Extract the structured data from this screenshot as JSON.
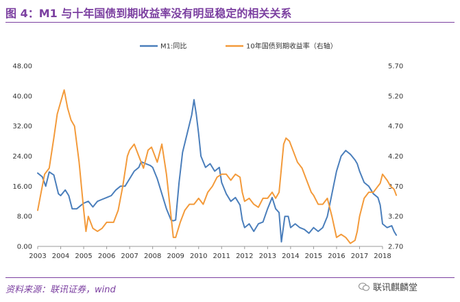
{
  "header": {
    "title": "图 4：M1 与十年国债到期收益率没有明显稳定的相关关系"
  },
  "footer": {
    "source": "资料来源：联讯证券，wind",
    "watermark": "联讯麒麟堂"
  },
  "colors": {
    "accent": "#7b3fa0",
    "m1": "#4a7ebb",
    "bond": "#f39a3a"
  },
  "chart_data": {
    "type": "line",
    "legend_position": "top",
    "grid": false,
    "x": {
      "range": [
        2003.0,
        2018.0
      ],
      "tick_labels": [
        "2003",
        "2004",
        "2005",
        "2006",
        "2007",
        "2008",
        "2009",
        "2010",
        "2011",
        "2012",
        "2013",
        "2014",
        "2015",
        "2016",
        "2017",
        "2018"
      ]
    },
    "y_left": {
      "range": [
        0,
        48
      ],
      "tick_labels": [
        "0.00",
        "8.00",
        "16.00",
        "24.00",
        "32.00",
        "40.00",
        "48.00"
      ]
    },
    "y_right": {
      "range": [
        2.7,
        5.7
      ],
      "tick_labels": [
        "2.70",
        "3.20",
        "3.70",
        "4.20",
        "4.70",
        "5.20",
        "5.70"
      ]
    },
    "series": [
      {
        "name": "M1:同比",
        "axis": "left",
        "points": [
          [
            2003.0,
            19.5
          ],
          [
            2003.2,
            18.5
          ],
          [
            2003.35,
            16
          ],
          [
            2003.5,
            19.8
          ],
          [
            2003.7,
            19
          ],
          [
            2003.9,
            14
          ],
          [
            2004.0,
            13.5
          ],
          [
            2004.2,
            15
          ],
          [
            2004.35,
            13.5
          ],
          [
            2004.5,
            10
          ],
          [
            2004.7,
            10
          ],
          [
            2004.9,
            11
          ],
          [
            2005.0,
            11.5
          ],
          [
            2005.2,
            12
          ],
          [
            2005.4,
            10.5
          ],
          [
            2005.6,
            12
          ],
          [
            2005.8,
            12.5
          ],
          [
            2006.0,
            13
          ],
          [
            2006.2,
            13.5
          ],
          [
            2006.4,
            15
          ],
          [
            2006.6,
            16
          ],
          [
            2006.8,
            16
          ],
          [
            2007.0,
            18
          ],
          [
            2007.2,
            20
          ],
          [
            2007.4,
            21
          ],
          [
            2007.5,
            22.5
          ],
          [
            2007.7,
            22
          ],
          [
            2007.9,
            21.5
          ],
          [
            2008.0,
            21
          ],
          [
            2008.2,
            18
          ],
          [
            2008.4,
            14
          ],
          [
            2008.6,
            10
          ],
          [
            2008.8,
            7
          ],
          [
            2008.9,
            6.8
          ],
          [
            2009.0,
            7
          ],
          [
            2009.15,
            17
          ],
          [
            2009.3,
            25
          ],
          [
            2009.5,
            30
          ],
          [
            2009.7,
            35
          ],
          [
            2009.8,
            39
          ],
          [
            2009.9,
            35
          ],
          [
            2010.0,
            30
          ],
          [
            2010.1,
            24
          ],
          [
            2010.3,
            21
          ],
          [
            2010.5,
            22
          ],
          [
            2010.7,
            20
          ],
          [
            2010.9,
            21
          ],
          [
            2011.0,
            17
          ],
          [
            2011.2,
            14
          ],
          [
            2011.4,
            12
          ],
          [
            2011.6,
            13
          ],
          [
            2011.8,
            11
          ],
          [
            2011.9,
            7
          ],
          [
            2012.0,
            5
          ],
          [
            2012.2,
            6
          ],
          [
            2012.4,
            4
          ],
          [
            2012.6,
            6
          ],
          [
            2012.8,
            6.5
          ],
          [
            2013.0,
            10
          ],
          [
            2013.2,
            13
          ],
          [
            2013.35,
            10
          ],
          [
            2013.5,
            9
          ],
          [
            2013.6,
            1.2
          ],
          [
            2013.75,
            8
          ],
          [
            2013.9,
            8
          ],
          [
            2014.0,
            5
          ],
          [
            2014.2,
            6
          ],
          [
            2014.4,
            5
          ],
          [
            2014.6,
            4.5
          ],
          [
            2014.8,
            3.5
          ],
          [
            2015.0,
            5
          ],
          [
            2015.2,
            4
          ],
          [
            2015.4,
            5
          ],
          [
            2015.6,
            8
          ],
          [
            2015.8,
            14
          ],
          [
            2016.0,
            20
          ],
          [
            2016.2,
            24
          ],
          [
            2016.4,
            25.5
          ],
          [
            2016.6,
            24.5
          ],
          [
            2016.8,
            23
          ],
          [
            2016.9,
            22
          ],
          [
            2017.0,
            20
          ],
          [
            2017.2,
            17
          ],
          [
            2017.4,
            16
          ],
          [
            2017.6,
            14
          ],
          [
            2017.8,
            13
          ],
          [
            2017.9,
            11
          ],
          [
            2018.0,
            6
          ],
          [
            2018.2,
            5
          ],
          [
            2018.4,
            5.5
          ],
          [
            2018.5,
            4
          ],
          [
            2018.6,
            3
          ]
        ]
      },
      {
        "name": "10年国债到期收益率（右轴）",
        "axis": "right",
        "points": [
          [
            2003.0,
            3.3
          ],
          [
            2003.15,
            3.6
          ],
          [
            2003.3,
            3.9
          ],
          [
            2003.5,
            4.0
          ],
          [
            2003.7,
            4.5
          ],
          [
            2003.85,
            4.9
          ],
          [
            2004.0,
            5.1
          ],
          [
            2004.15,
            5.3
          ],
          [
            2004.3,
            5.0
          ],
          [
            2004.45,
            4.8
          ],
          [
            2004.6,
            4.7
          ],
          [
            2004.8,
            4.1
          ],
          [
            2005.0,
            3.3
          ],
          [
            2005.1,
            2.95
          ],
          [
            2005.2,
            3.2
          ],
          [
            2005.4,
            3.0
          ],
          [
            2005.6,
            2.95
          ],
          [
            2005.8,
            3.0
          ],
          [
            2006.0,
            3.1
          ],
          [
            2006.15,
            3.1
          ],
          [
            2006.3,
            3.1
          ],
          [
            2006.5,
            3.3
          ],
          [
            2006.7,
            3.7
          ],
          [
            2006.9,
            4.2
          ],
          [
            2007.0,
            4.3
          ],
          [
            2007.2,
            4.4
          ],
          [
            2007.4,
            4.2
          ],
          [
            2007.6,
            4.0
          ],
          [
            2007.8,
            4.3
          ],
          [
            2007.95,
            4.35
          ],
          [
            2008.0,
            4.3
          ],
          [
            2008.2,
            4.1
          ],
          [
            2008.4,
            4.4
          ],
          [
            2008.6,
            3.9
          ],
          [
            2008.8,
            3.2
          ],
          [
            2008.9,
            2.85
          ],
          [
            2009.0,
            2.85
          ],
          [
            2009.2,
            3.1
          ],
          [
            2009.4,
            3.3
          ],
          [
            2009.6,
            3.4
          ],
          [
            2009.8,
            3.4
          ],
          [
            2010.0,
            3.5
          ],
          [
            2010.2,
            3.4
          ],
          [
            2010.4,
            3.6
          ],
          [
            2010.6,
            3.7
          ],
          [
            2010.8,
            3.85
          ],
          [
            2011.0,
            3.9
          ],
          [
            2011.2,
            3.9
          ],
          [
            2011.4,
            3.8
          ],
          [
            2011.6,
            3.9
          ],
          [
            2011.8,
            3.85
          ],
          [
            2011.9,
            3.6
          ],
          [
            2012.0,
            3.45
          ],
          [
            2012.2,
            3.5
          ],
          [
            2012.4,
            3.4
          ],
          [
            2012.6,
            3.35
          ],
          [
            2012.8,
            3.5
          ],
          [
            2013.0,
            3.5
          ],
          [
            2013.2,
            3.6
          ],
          [
            2013.35,
            3.5
          ],
          [
            2013.5,
            3.6
          ],
          [
            2013.7,
            4.4
          ],
          [
            2013.8,
            4.5
          ],
          [
            2013.95,
            4.45
          ],
          [
            2014.1,
            4.3
          ],
          [
            2014.3,
            4.1
          ],
          [
            2014.5,
            4.0
          ],
          [
            2014.7,
            3.8
          ],
          [
            2014.9,
            3.6
          ],
          [
            2015.0,
            3.55
          ],
          [
            2015.2,
            3.4
          ],
          [
            2015.4,
            3.4
          ],
          [
            2015.6,
            3.5
          ],
          [
            2015.8,
            3.2
          ],
          [
            2016.0,
            2.85
          ],
          [
            2016.2,
            2.9
          ],
          [
            2016.4,
            2.85
          ],
          [
            2016.6,
            2.75
          ],
          [
            2016.8,
            2.8
          ],
          [
            2016.9,
            2.95
          ],
          [
            2017.0,
            3.2
          ],
          [
            2017.2,
            3.5
          ],
          [
            2017.4,
            3.6
          ],
          [
            2017.6,
            3.6
          ],
          [
            2017.8,
            3.7
          ],
          [
            2017.9,
            3.75
          ],
          [
            2018.0,
            3.9
          ],
          [
            2018.2,
            3.8
          ],
          [
            2018.35,
            3.7
          ],
          [
            2018.5,
            3.65
          ],
          [
            2018.6,
            3.55
          ]
        ]
      }
    ]
  }
}
